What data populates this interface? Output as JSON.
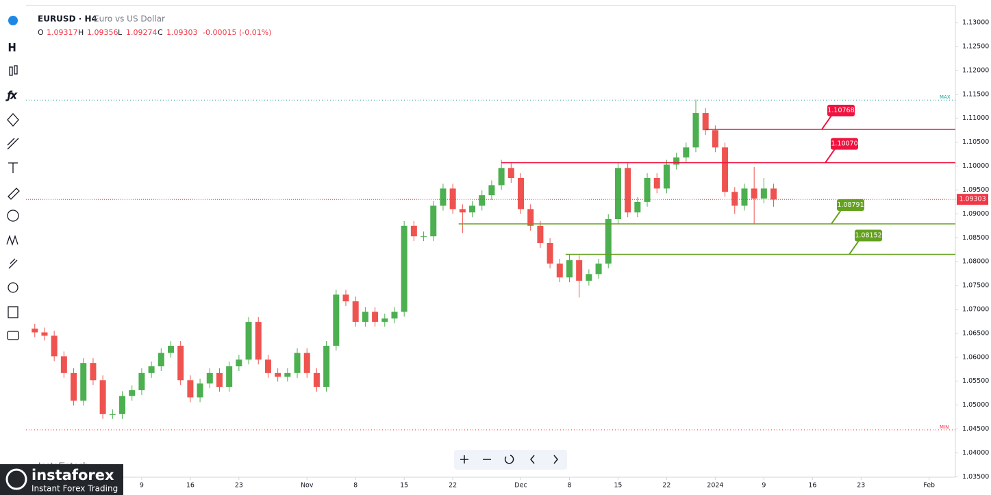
{
  "header": {
    "symbol": "EURUSD · H4",
    "description": "Euro vs US Dollar",
    "o_label": "O",
    "open": "1.09317",
    "h_label": "H",
    "high": "1.09356",
    "l_label": "L",
    "low": "1.09274",
    "c_label": "C",
    "close": "1.09303",
    "change": "-0.00015 (-0.01%)"
  },
  "chart_data": {
    "type": "candlestick",
    "up_color": "#4caf50",
    "down_color": "#ef5350",
    "x": [
      -11,
      -10,
      -9,
      -8,
      -7,
      -6,
      -5,
      -4,
      -3,
      -2,
      -1,
      0,
      1,
      2,
      3,
      4,
      5,
      6,
      7,
      8,
      9,
      10,
      11,
      12,
      13,
      14,
      15,
      16,
      17,
      18,
      19,
      20,
      21,
      22,
      23,
      24,
      25,
      26,
      27,
      28,
      29,
      30,
      31,
      32,
      33,
      34,
      35,
      36,
      37,
      38,
      39,
      40,
      41,
      42,
      43,
      44,
      45,
      46,
      47,
      48,
      49,
      50,
      51,
      52,
      53,
      54,
      55,
      56,
      57,
      58,
      59,
      60,
      61,
      62,
      63,
      64,
      65
    ],
    "open": [
      1.066,
      1.0652,
      1.0645,
      1.0602,
      1.0567,
      1.0509,
      1.0588,
      1.0552,
      1.0481,
      1.0481,
      1.0519,
      1.0531,
      1.0567,
      1.0581,
      1.0609,
      1.0624,
      1.0552,
      1.0516,
      1.0545,
      1.0567,
      1.0538,
      1.0581,
      1.0595,
      1.0674,
      1.0595,
      1.0567,
      1.0559,
      1.0567,
      1.0609,
      1.0567,
      1.0538,
      1.0624,
      1.0731,
      1.0717,
      1.0674,
      1.0695,
      1.0674,
      1.0681,
      1.0695,
      1.0875,
      1.0853,
      1.0853,
      1.0917,
      1.0953,
      1.091,
      1.0903,
      1.0917,
      1.0939,
      1.096,
      1.0996,
      1.0975,
      1.091,
      1.0875,
      1.0839,
      1.0796,
      1.0767,
      1.0803,
      1.076,
      1.0774,
      1.0796,
      1.0889,
      1.0996,
      1.0903,
      1.0925,
      1.0975,
      1.0953,
      1.1003,
      1.1018,
      1.1039,
      1.1111,
      1.1075,
      1.1039,
      1.0946,
      1.0917,
      1.0953,
      1.0932,
      1.0953
    ],
    "high": [
      1.067,
      1.0662,
      1.0655,
      1.0612,
      1.0577,
      1.0598,
      1.0598,
      1.0562,
      1.0491,
      1.0529,
      1.0541,
      1.0577,
      1.0591,
      1.0619,
      1.0634,
      1.0634,
      1.0562,
      1.0555,
      1.0577,
      1.0577,
      1.0591,
      1.0605,
      1.0684,
      1.0684,
      1.0605,
      1.0577,
      1.0577,
      1.0619,
      1.0619,
      1.0577,
      1.0634,
      1.0741,
      1.0741,
      1.0727,
      1.0705,
      1.0705,
      1.0691,
      1.0705,
      1.0885,
      1.0885,
      1.0863,
      1.0927,
      1.0963,
      1.0963,
      1.092,
      1.0927,
      1.0949,
      1.097,
      1.1013,
      1.1006,
      1.0985,
      1.092,
      1.0885,
      1.0849,
      1.0806,
      1.0815,
      1.0813,
      1.0784,
      1.0806,
      1.0899,
      1.1008,
      1.1006,
      1.0935,
      1.0985,
      1.0985,
      1.1013,
      1.1028,
      1.1049,
      1.1139,
      1.1121,
      1.1085,
      1.1049,
      1.0956,
      1.0963,
      1.0998,
      1.0975,
      1.0963
    ],
    "low": [
      1.0642,
      1.0635,
      1.0592,
      1.0557,
      1.0499,
      1.0499,
      1.0542,
      1.0471,
      1.0471,
      1.0471,
      1.0509,
      1.0521,
      1.0557,
      1.0571,
      1.0599,
      1.0542,
      1.0506,
      1.0506,
      1.0535,
      1.0528,
      1.0528,
      1.0571,
      1.0585,
      1.0585,
      1.0557,
      1.0549,
      1.0549,
      1.0557,
      1.0557,
      1.0528,
      1.0528,
      1.0614,
      1.0707,
      1.0664,
      1.0664,
      1.0664,
      1.0664,
      1.0671,
      1.0685,
      1.0843,
      1.0843,
      1.0843,
      1.0907,
      1.09,
      1.086,
      1.0893,
      1.0907,
      1.0929,
      1.095,
      1.0965,
      1.09,
      1.0865,
      1.0829,
      1.0786,
      1.0757,
      1.0757,
      1.0725,
      1.075,
      1.0764,
      1.0786,
      1.0879,
      1.0893,
      1.0893,
      1.0915,
      1.0943,
      1.0943,
      1.0993,
      1.1008,
      1.1029,
      1.1065,
      1.1029,
      1.0936,
      1.09,
      1.0907,
      1.0878,
      1.0922,
      1.0915
    ],
    "close": [
      1.0652,
      1.0645,
      1.0602,
      1.0567,
      1.0509,
      1.0588,
      1.0552,
      1.0481,
      1.0481,
      1.0519,
      1.0531,
      1.0567,
      1.0581,
      1.0609,
      1.0624,
      1.0552,
      1.0516,
      1.0545,
      1.0567,
      1.0538,
      1.0581,
      1.0595,
      1.0674,
      1.0595,
      1.0567,
      1.0559,
      1.0567,
      1.0609,
      1.0567,
      1.0538,
      1.0624,
      1.0731,
      1.0717,
      1.0674,
      1.0695,
      1.0674,
      1.0681,
      1.0695,
      1.0875,
      1.0853,
      1.0853,
      1.0917,
      1.0953,
      1.091,
      1.0903,
      1.0917,
      1.0939,
      1.096,
      1.0996,
      1.0975,
      1.091,
      1.0875,
      1.0839,
      1.0796,
      1.0767,
      1.0803,
      1.076,
      1.0774,
      1.0796,
      1.0889,
      1.0996,
      1.0903,
      1.0925,
      1.0975,
      1.0953,
      1.1003,
      1.1018,
      1.1039,
      1.1111,
      1.1075,
      1.1039,
      1.0946,
      1.0917,
      1.0953,
      1.0932,
      1.0953,
      1.093
    ],
    "xlim": [
      -11.9,
      83.7
    ],
    "xticks": [
      {
        "value": 0,
        "label": "9"
      },
      {
        "value": 5,
        "label": "16"
      },
      {
        "value": 10,
        "label": "23"
      },
      {
        "value": 17,
        "label": "Nov"
      },
      {
        "value": 22,
        "label": "8"
      },
      {
        "value": 27,
        "label": "15"
      },
      {
        "value": 32,
        "label": "22"
      },
      {
        "value": 39,
        "label": "Dec"
      },
      {
        "value": 44,
        "label": "8"
      },
      {
        "value": 49,
        "label": "15"
      },
      {
        "value": 54,
        "label": "22"
      },
      {
        "value": 59,
        "label": "2024"
      },
      {
        "value": 64,
        "label": "9"
      },
      {
        "value": 69,
        "label": "16"
      },
      {
        "value": 74,
        "label": "23"
      },
      {
        "value": 81,
        "label": "Feb"
      }
    ],
    "ylim": [
      1.0349,
      1.1336
    ],
    "yticks": [
      {
        "value": 1.035,
        "label": "1.03500"
      },
      {
        "value": 1.04,
        "label": "1.04000"
      },
      {
        "value": 1.045,
        "label": "1.04500"
      },
      {
        "value": 1.05,
        "label": "1.05000"
      },
      {
        "value": 1.055,
        "label": "1.05500"
      },
      {
        "value": 1.06,
        "label": "1.06000"
      },
      {
        "value": 1.065,
        "label": "1.06500"
      },
      {
        "value": 1.07,
        "label": "1.07000"
      },
      {
        "value": 1.075,
        "label": "1.07500"
      },
      {
        "value": 1.08,
        "label": "1.08000"
      },
      {
        "value": 1.085,
        "label": "1.08500"
      },
      {
        "value": 1.09,
        "label": "1.09000"
      },
      {
        "value": 1.095,
        "label": "1.09500"
      },
      {
        "value": 1.1,
        "label": "1.10000"
      },
      {
        "value": 1.105,
        "label": "1.10500"
      },
      {
        "value": 1.11,
        "label": "1.11000"
      },
      {
        "value": 1.115,
        "label": "1.11500"
      },
      {
        "value": 1.12,
        "label": "1.12000"
      },
      {
        "value": 1.125,
        "label": "1.12500"
      },
      {
        "value": 1.13,
        "label": "1.13000"
      }
    ],
    "levels": [
      {
        "value": 1.10768,
        "label": "1.10768",
        "color": "#f0133f",
        "from": 58
      },
      {
        "value": 1.1007,
        "label": "1.10070",
        "color": "#f0133f",
        "from": 37
      },
      {
        "value": 1.08791,
        "label": "1.08791",
        "color": "#64a11f",
        "from": 32.6
      },
      {
        "value": 1.08152,
        "label": "1.08152",
        "color": "#64a11f",
        "from": 43.6
      }
    ],
    "last_price": {
      "value": 1.09303,
      "label": "1.09303",
      "color": "#f23645"
    },
    "max_line": {
      "label": "MAX",
      "value": 1.1138,
      "color": "#26a69a"
    },
    "min_line": {
      "label": "MIN",
      "value": 1.0448,
      "color": "#f23645"
    }
  },
  "watermark": {
    "source": "InstaFintech",
    "brand": "instaforex",
    "tagline": "Instant Forex Trading"
  }
}
